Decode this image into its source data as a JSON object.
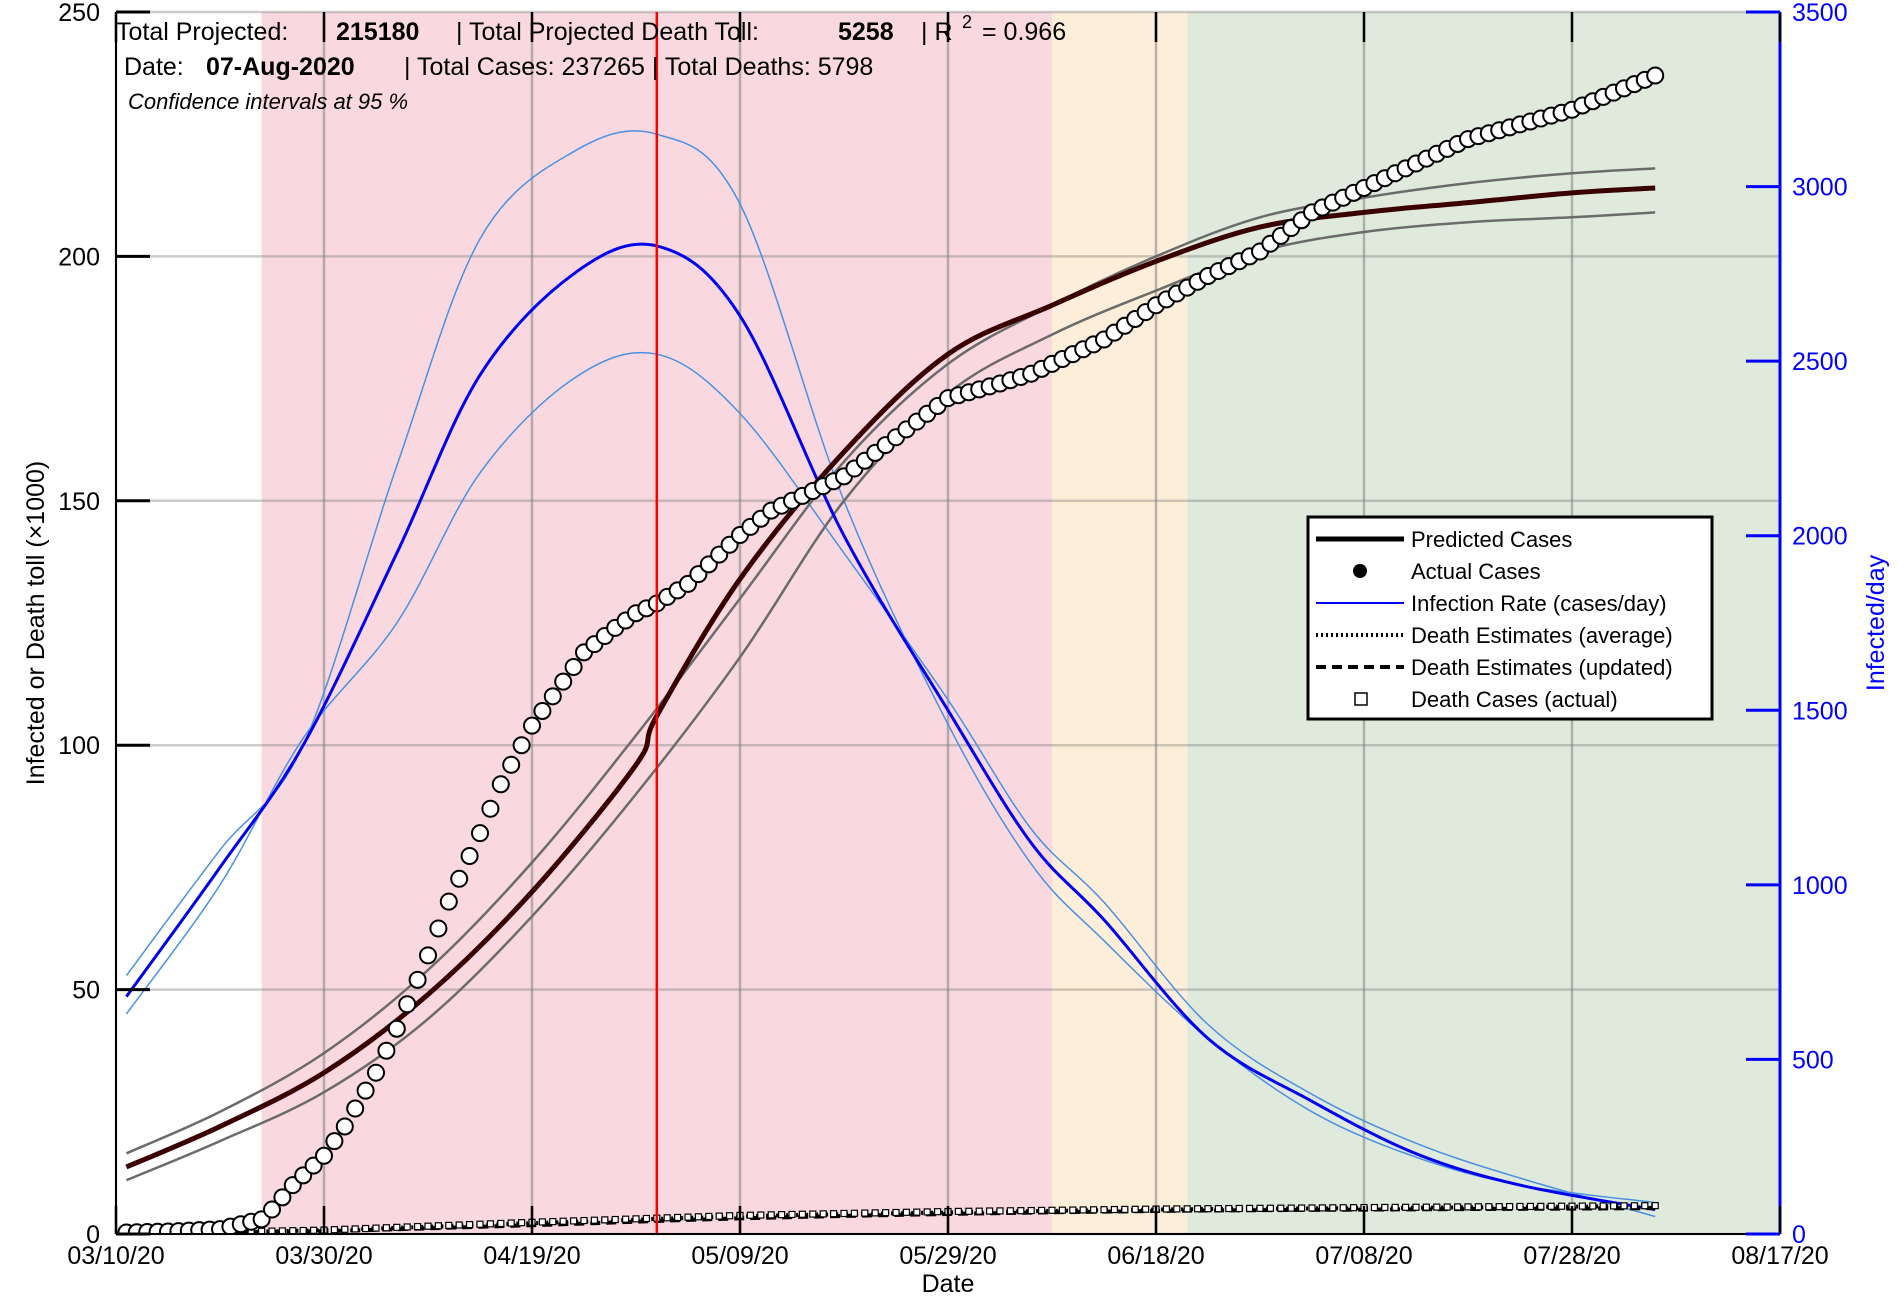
{
  "info": {
    "total_projected_label": "Total Projected:",
    "total_projected_value": "215180",
    "death_toll_label": "| Total Projected Death Toll:",
    "death_toll_value": "5258",
    "r2_prefix": "| R",
    "r2_exp": "2",
    "r2_value": "= 0.966",
    "date_label": "Date:",
    "date_value": "07-Aug-2020",
    "totals_text": "| Total Cases: 237265 | Total Deaths: 5798",
    "confidence": "Confidence intervals at 95 %"
  },
  "colors": {
    "phase_red": "#f9d9df",
    "phase_orange": "#fdeed9",
    "phase_green": "#dfeadc",
    "predicted": "#000000",
    "ci_cases": "#6b6b6b",
    "rate": "#0000ee",
    "rate_ci": "#4a90e2",
    "peak_line": "#ff0000",
    "right_axis": "#0000ff"
  },
  "chart_data": {
    "type": "line",
    "xlabel": "Date",
    "ylabel_left": "Infected or Death toll (×1000)",
    "ylabel_right": "Infected/day",
    "x_ticks": [
      "03/10/20",
      "03/30/20",
      "04/19/20",
      "05/09/20",
      "05/29/20",
      "06/18/20",
      "07/08/20",
      "07/28/20",
      "08/17/20"
    ],
    "xlim_days": [
      0,
      160
    ],
    "ylim_left": [
      0,
      250
    ],
    "y_ticks_left": [
      0,
      50,
      100,
      150,
      200,
      250
    ],
    "ylim_right": [
      0,
      3500
    ],
    "y_ticks_right": [
      0,
      500,
      1000,
      1500,
      2000,
      2500,
      3000,
      3500
    ],
    "phases": [
      {
        "start_day": 14,
        "end_day": 90,
        "color": "phase_red"
      },
      {
        "start_day": 90,
        "end_day": 103,
        "color": "phase_orange"
      },
      {
        "start_day": 103,
        "end_day": 160,
        "color": "phase_green"
      }
    ],
    "peak_day": 52,
    "series": [
      {
        "name": "Predicted Cases",
        "days": [
          1,
          10,
          20,
          30,
          40,
          50,
          52,
          60,
          70,
          80,
          90,
          100,
          110,
          120,
          130,
          140,
          148
        ],
        "values": [
          13.7,
          22,
          33,
          49,
          70,
          96,
          106,
          134,
          160,
          180,
          190,
          199,
          206,
          209,
          211,
          213,
          214
        ]
      },
      {
        "name": "Predicted Cases upper CI",
        "days": [
          1,
          10,
          20,
          30,
          40,
          50,
          60,
          70,
          80,
          90,
          100,
          110,
          120,
          130,
          140,
          148
        ],
        "values": [
          16.5,
          25,
          37,
          54,
          76,
          102,
          130,
          158,
          178,
          190,
          200,
          208,
          212,
          215,
          217,
          218
        ]
      },
      {
        "name": "Predicted Cases lower CI",
        "days": [
          1,
          10,
          20,
          30,
          40,
          50,
          60,
          70,
          80,
          90,
          100,
          110,
          120,
          130,
          140,
          148
        ],
        "values": [
          11,
          19,
          29,
          44,
          65,
          90,
          118,
          150,
          172,
          184,
          193,
          201,
          205,
          207,
          208,
          209
        ]
      },
      {
        "name": "Actual Cases",
        "days": [
          1,
          5,
          10,
          14,
          15,
          17,
          20,
          22,
          25,
          27,
          30,
          32,
          35,
          37,
          40,
          43,
          45,
          48,
          50,
          52,
          55,
          58,
          60,
          63,
          66,
          70,
          75,
          80,
          85,
          88,
          90,
          95,
          100,
          105,
          110,
          115,
          120,
          125,
          130,
          135,
          140,
          148
        ],
        "values": [
          0.3,
          0.5,
          1,
          3,
          5,
          10,
          16,
          22,
          33,
          42,
          57,
          68,
          82,
          92,
          104,
          113,
          119,
          124,
          127,
          129,
          133,
          139,
          143,
          148,
          151,
          155,
          163,
          171,
          174,
          176,
          178,
          183,
          190,
          196,
          201,
          209,
          214,
          219,
          224,
          227,
          230,
          237
        ]
      },
      {
        "name": "Infection Rate (cases/day)",
        "days": [
          1,
          10,
          18,
          27,
          35,
          44,
          52,
          60,
          70,
          80,
          88,
          95,
          105,
          115,
          125,
          135,
          148
        ],
        "values": [
          680,
          1050,
          1400,
          1950,
          2460,
          2750,
          2830,
          2630,
          2000,
          1500,
          1120,
          900,
          560,
          380,
          230,
          140,
          70
        ]
      },
      {
        "name": "Infection Rate upper CI",
        "days": [
          1,
          10,
          18,
          27,
          35,
          44,
          52,
          60,
          70,
          80,
          88,
          95,
          105,
          115,
          125,
          135,
          148
        ],
        "values": [
          740,
          1100,
          1400,
          2200,
          2850,
          3100,
          3150,
          2950,
          2100,
          1460,
          1060,
          840,
          560,
          350,
          220,
          140,
          90
        ]
      },
      {
        "name": "Infection Rate lower CI",
        "days": [
          1,
          10,
          18,
          27,
          35,
          44,
          52,
          60,
          70,
          80,
          88,
          95,
          105,
          115,
          125,
          135,
          148
        ],
        "values": [
          630,
          1000,
          1420,
          1750,
          2180,
          2450,
          2520,
          2350,
          1950,
          1530,
          1160,
          950,
          600,
          400,
          260,
          160,
          50
        ]
      },
      {
        "name": "Death Estimates (average)",
        "days": [
          1,
          20,
          40,
          60,
          80,
          100,
          120,
          140,
          148
        ],
        "values": [
          0,
          0.8,
          2.2,
          3.6,
          4.4,
          5,
          5.3,
          5.6,
          5.8
        ]
      },
      {
        "name": "Death Estimates (updated)",
        "days": [
          1,
          20,
          40,
          60,
          80,
          100,
          120,
          140,
          148
        ],
        "values": [
          0,
          0.6,
          1.8,
          3.2,
          4.1,
          4.7,
          5,
          5.2,
          5.3
        ]
      },
      {
        "name": "Death Cases (actual)",
        "days": [
          1,
          20,
          40,
          60,
          80,
          100,
          120,
          140,
          148
        ],
        "values": [
          0,
          0.8,
          2.4,
          3.8,
          4.6,
          5.1,
          5.4,
          5.7,
          5.8
        ]
      }
    ],
    "legend": {
      "placement": "center-right",
      "entries": [
        "Predicted Cases",
        "Actual Cases",
        "Infection Rate (cases/day)",
        "Death Estimates (average)",
        "Death Estimates (updated)",
        "Death Cases (actual)"
      ]
    },
    "grid": true
  }
}
